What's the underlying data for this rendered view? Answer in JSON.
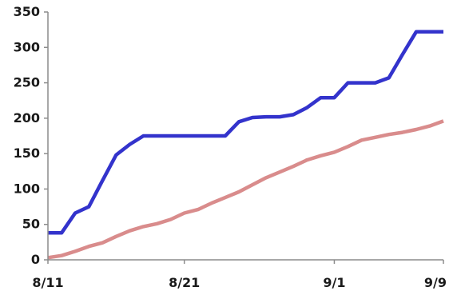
{
  "chart_data": {
    "type": "line",
    "title": "",
    "xlabel": "",
    "ylabel": "",
    "ylim": [
      0,
      350
    ],
    "yticks": [
      0,
      50,
      100,
      150,
      200,
      250,
      300,
      350
    ],
    "xlim": [
      "8/11",
      "9/9"
    ],
    "xticks": [
      "8/11",
      "8/21",
      "9/1",
      "9/9"
    ],
    "grid": false,
    "legend": "none",
    "series": [
      {
        "color": "#3333cc",
        "points": [
          [
            "8/11",
            38
          ],
          [
            "8/12",
            38
          ],
          [
            "8/13",
            66
          ],
          [
            "8/14",
            75
          ],
          [
            "8/15",
            112
          ],
          [
            "8/16",
            148
          ],
          [
            "8/17",
            163
          ],
          [
            "8/18",
            175
          ],
          [
            "8/19",
            175
          ],
          [
            "8/20",
            175
          ],
          [
            "8/21",
            175
          ],
          [
            "8/22",
            175
          ],
          [
            "8/23",
            175
          ],
          [
            "8/24",
            175
          ],
          [
            "8/25",
            195
          ],
          [
            "8/26",
            201
          ],
          [
            "8/27",
            202
          ],
          [
            "8/28",
            202
          ],
          [
            "8/29",
            205
          ],
          [
            "8/30",
            215
          ],
          [
            "8/31",
            229
          ],
          [
            "9/1",
            229
          ],
          [
            "9/2",
            250
          ],
          [
            "9/3",
            250
          ],
          [
            "9/4",
            250
          ],
          [
            "9/5",
            257
          ],
          [
            "9/6",
            290
          ],
          [
            "9/7",
            322
          ],
          [
            "9/8",
            322
          ],
          [
            "9/9",
            322
          ]
        ]
      },
      {
        "color": "#d98c8c",
        "points": [
          [
            "8/11",
            3
          ],
          [
            "8/12",
            6
          ],
          [
            "8/13",
            12
          ],
          [
            "8/14",
            19
          ],
          [
            "8/15",
            24
          ],
          [
            "8/16",
            33
          ],
          [
            "8/17",
            41
          ],
          [
            "8/18",
            47
          ],
          [
            "8/19",
            51
          ],
          [
            "8/20",
            57
          ],
          [
            "8/21",
            66
          ],
          [
            "8/22",
            71
          ],
          [
            "8/23",
            80
          ],
          [
            "8/24",
            88
          ],
          [
            "8/25",
            96
          ],
          [
            "8/26",
            106
          ],
          [
            "8/27",
            116
          ],
          [
            "8/28",
            124
          ],
          [
            "8/29",
            132
          ],
          [
            "8/30",
            141
          ],
          [
            "8/31",
            147
          ],
          [
            "9/1",
            152
          ],
          [
            "9/2",
            160
          ],
          [
            "9/3",
            169
          ],
          [
            "9/4",
            173
          ],
          [
            "9/5",
            177
          ],
          [
            "9/6",
            180
          ],
          [
            "9/7",
            184
          ],
          [
            "9/8",
            189
          ],
          [
            "9/9",
            196
          ]
        ]
      }
    ]
  }
}
